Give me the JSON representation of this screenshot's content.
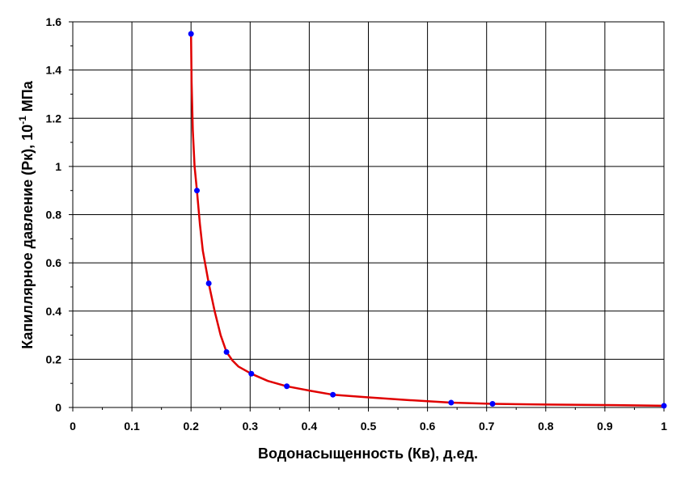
{
  "chart_data": {
    "type": "line",
    "title": "",
    "xlabel": "Водонасыщенность (Кв), д.ед.",
    "ylabel": {
      "prefix": "Капиллярное давление (Рк), 10",
      "superscript": "-1",
      "suffix": " МПа"
    },
    "xlim": [
      0,
      1
    ],
    "ylim": [
      0,
      1.6
    ],
    "x_ticks": [
      "0",
      "0.1",
      "0.2",
      "0.3",
      "0.4",
      "0.5",
      "0.6",
      "0.7",
      "0.8",
      "0.9",
      "1"
    ],
    "y_ticks": [
      "0",
      "0.2",
      "0.4",
      "0.6",
      "0.8",
      "1",
      "1.2",
      "1.4",
      "1.6"
    ],
    "grid": true,
    "legend": "none",
    "series": [
      {
        "kind": "points",
        "color": "#0000ff",
        "x": [
          0.2,
          0.21,
          0.23,
          0.26,
          0.302,
          0.362,
          0.44,
          0.64,
          0.71,
          1.0
        ],
        "y": [
          1.55,
          0.9,
          0.515,
          0.23,
          0.14,
          0.088,
          0.053,
          0.02,
          0.015,
          0.007
        ]
      },
      {
        "kind": "fitted-curve",
        "color": "#e00000",
        "x": [
          0.2,
          0.201,
          0.203,
          0.206,
          0.21,
          0.215,
          0.22,
          0.23,
          0.24,
          0.25,
          0.26,
          0.27,
          0.28,
          0.302,
          0.33,
          0.362,
          0.4,
          0.44,
          0.5,
          0.56,
          0.64,
          0.71,
          0.8,
          0.9,
          1.0
        ],
        "y": [
          1.55,
          1.35,
          1.15,
          1.0,
          0.9,
          0.76,
          0.65,
          0.515,
          0.4,
          0.3,
          0.23,
          0.195,
          0.17,
          0.14,
          0.11,
          0.088,
          0.07,
          0.053,
          0.042,
          0.032,
          0.02,
          0.015,
          0.012,
          0.01,
          0.007
        ]
      }
    ]
  }
}
